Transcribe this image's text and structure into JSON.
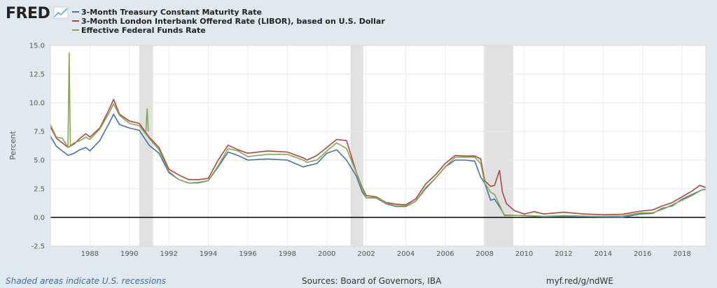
{
  "header": {
    "brand": "FRED",
    "legend": [
      {
        "label": "3-Month Treasury Constant Maturity Rate",
        "color": "#4572a7"
      },
      {
        "label": "3-Month London Interbank Offered Rate (LIBOR), based on U.S. Dollar",
        "color": "#aa4643"
      },
      {
        "label": "Effective Federal Funds Rate",
        "color": "#89a54e"
      }
    ]
  },
  "footer": {
    "recession_note": "Shaded areas indicate U.S. recessions",
    "sources": "Sources: Board of Governors, IBA",
    "link": "myf.red/g/ndWE"
  },
  "chart_data": {
    "type": "line",
    "ylabel": "Percent",
    "ylim": [
      -2.5,
      15.0
    ],
    "xlim": [
      1986.0,
      2019.2
    ],
    "y_ticks": [
      "15.0",
      "12.5",
      "10.0",
      "7.5",
      "5.0",
      "2.5",
      "0.0",
      "-2.5"
    ],
    "x_ticks": [
      "1988",
      "1990",
      "1992",
      "1994",
      "1996",
      "1998",
      "2000",
      "2002",
      "2004",
      "2006",
      "2008",
      "2010",
      "2012",
      "2014",
      "2016",
      "2018"
    ],
    "recessions": [
      [
        1990.5,
        1991.2
      ],
      [
        2001.2,
        2001.85
      ],
      [
        2007.95,
        2009.45
      ]
    ],
    "series": [
      {
        "name": "3-Month Treasury Constant Maturity Rate",
        "color": "#4572a7",
        "x": [
          1986.0,
          1986.3,
          1986.6,
          1986.9,
          1987.2,
          1987.5,
          1987.8,
          1988.0,
          1988.5,
          1989.0,
          1989.2,
          1989.5,
          1990.0,
          1990.5,
          1991.0,
          1991.5,
          1992.0,
          1992.5,
          1993.0,
          1993.5,
          1994.0,
          1994.5,
          1995.0,
          1995.5,
          1996.0,
          1997.0,
          1998.0,
          1998.8,
          1999.0,
          1999.5,
          2000.0,
          2000.5,
          2001.0,
          2001.5,
          2001.8,
          2002.0,
          2002.5,
          2003.0,
          2003.5,
          2004.0,
          2004.5,
          2005.0,
          2005.5,
          2006.0,
          2006.5,
          2007.0,
          2007.5,
          2007.8,
          2008.0,
          2008.3,
          2008.5,
          2008.8,
          2009.0,
          2010.0,
          2011.0,
          2012.0,
          2013.0,
          2014.0,
          2015.0,
          2015.9,
          2016.5,
          2017.0,
          2017.5,
          2018.0,
          2018.5,
          2019.0,
          2019.2
        ],
        "y": [
          7.1,
          6.2,
          5.8,
          5.4,
          5.6,
          5.9,
          6.1,
          5.8,
          6.7,
          8.3,
          9.0,
          8.1,
          7.8,
          7.6,
          6.3,
          5.6,
          3.9,
          3.3,
          3.0,
          3.05,
          3.2,
          4.4,
          5.7,
          5.4,
          5.0,
          5.1,
          5.0,
          4.4,
          4.5,
          4.7,
          5.6,
          5.9,
          5.0,
          3.6,
          2.2,
          1.7,
          1.7,
          1.2,
          0.95,
          0.95,
          1.4,
          2.5,
          3.4,
          4.4,
          5.0,
          5.0,
          4.9,
          3.5,
          3.0,
          1.5,
          1.6,
          0.8,
          0.2,
          0.15,
          0.05,
          0.08,
          0.06,
          0.03,
          0.02,
          0.3,
          0.35,
          0.8,
          1.0,
          1.6,
          2.0,
          2.4,
          2.45
        ]
      },
      {
        "name": "3-Month London Interbank Offered Rate (LIBOR), based on U.S. Dollar",
        "color": "#aa4643",
        "x": [
          1986.0,
          1986.3,
          1986.6,
          1986.9,
          1987.2,
          1987.5,
          1987.8,
          1988.0,
          1988.5,
          1989.0,
          1989.2,
          1989.5,
          1990.0,
          1990.5,
          1991.0,
          1991.5,
          1992.0,
          1992.5,
          1993.0,
          1993.5,
          1994.0,
          1994.5,
          1995.0,
          1995.5,
          1996.0,
          1997.0,
          1998.0,
          1998.8,
          1999.0,
          1999.5,
          2000.0,
          2000.5,
          2001.0,
          2001.5,
          2001.8,
          2002.0,
          2002.5,
          2003.0,
          2003.5,
          2004.0,
          2004.5,
          2005.0,
          2005.5,
          2006.0,
          2006.5,
          2007.0,
          2007.5,
          2007.8,
          2008.0,
          2008.3,
          2008.5,
          2008.75,
          2008.9,
          2009.1,
          2009.5,
          2010.0,
          2010.5,
          2011.0,
          2012.0,
          2013.0,
          2014.0,
          2015.0,
          2015.9,
          2016.5,
          2017.0,
          2017.5,
          2018.0,
          2018.5,
          2018.9,
          2019.2
        ],
        "y": [
          7.9,
          6.9,
          6.5,
          6.1,
          6.4,
          6.9,
          7.3,
          7.0,
          7.8,
          9.5,
          10.3,
          9.0,
          8.4,
          8.2,
          7.0,
          6.1,
          4.2,
          3.7,
          3.3,
          3.3,
          3.4,
          5.0,
          6.3,
          5.9,
          5.6,
          5.8,
          5.7,
          5.2,
          5.0,
          5.4,
          6.1,
          6.8,
          6.7,
          3.9,
          2.6,
          1.9,
          1.8,
          1.3,
          1.15,
          1.1,
          1.6,
          2.9,
          3.7,
          4.7,
          5.4,
          5.35,
          5.36,
          5.1,
          3.2,
          2.7,
          2.8,
          4.1,
          2.2,
          1.2,
          0.6,
          0.3,
          0.5,
          0.3,
          0.45,
          0.3,
          0.23,
          0.28,
          0.55,
          0.65,
          1.0,
          1.3,
          1.8,
          2.3,
          2.8,
          2.6
        ]
      },
      {
        "name": "Effective Federal Funds Rate",
        "color": "#89a54e",
        "x": [
          1986.0,
          1986.3,
          1986.6,
          1986.9,
          1987.2,
          1987.5,
          1987.8,
          1988.0,
          1988.5,
          1989.0,
          1989.2,
          1989.5,
          1990.0,
          1990.5,
          1991.0,
          1991.5,
          1992.0,
          1992.5,
          1993.0,
          1993.5,
          1994.0,
          1994.5,
          1995.0,
          1995.5,
          1996.0,
          1997.0,
          1998.0,
          1998.8,
          1999.0,
          1999.5,
          2000.0,
          2000.5,
          2001.0,
          2001.5,
          2001.8,
          2002.0,
          2002.5,
          2003.0,
          2003.5,
          2004.0,
          2004.5,
          2005.0,
          2005.5,
          2006.0,
          2006.5,
          2007.0,
          2007.5,
          2007.8,
          2008.0,
          2008.3,
          2008.5,
          2008.8,
          2009.0,
          2010.0,
          2011.0,
          2012.0,
          2013.0,
          2014.0,
          2015.0,
          2015.9,
          2016.5,
          2017.0,
          2017.5,
          2018.0,
          2018.5,
          2019.0,
          2019.2
        ],
        "y": [
          8.1,
          7.0,
          6.9,
          6.1,
          6.5,
          6.7,
          7.0,
          6.8,
          7.7,
          9.2,
          9.9,
          8.9,
          8.2,
          8.0,
          6.9,
          5.9,
          4.0,
          3.3,
          3.0,
          3.0,
          3.2,
          4.5,
          6.0,
          5.8,
          5.3,
          5.5,
          5.5,
          5.0,
          4.8,
          5.0,
          5.8,
          6.5,
          6.0,
          3.9,
          2.5,
          1.7,
          1.75,
          1.25,
          1.0,
          1.0,
          1.4,
          2.6,
          3.4,
          4.4,
          5.25,
          5.25,
          5.25,
          4.7,
          3.0,
          2.2,
          2.0,
          0.9,
          0.15,
          0.18,
          0.1,
          0.16,
          0.11,
          0.09,
          0.13,
          0.4,
          0.4,
          0.7,
          1.1,
          1.5,
          1.9,
          2.4,
          2.4
        ]
      }
    ],
    "annotation_spikes": [
      {
        "series": "Effective Federal Funds Rate",
        "x": 1986.95,
        "y": 14.4
      },
      {
        "series": "Effective Federal Funds Rate",
        "x": 1990.9,
        "y": 9.5
      }
    ]
  }
}
